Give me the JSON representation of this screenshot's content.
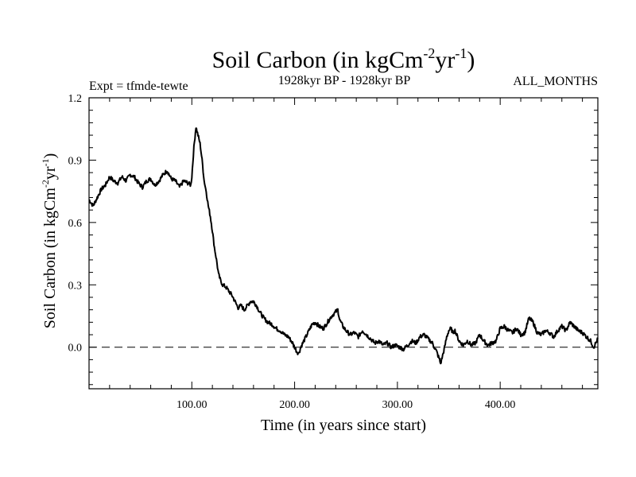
{
  "chart_data": {
    "type": "line",
    "title": {
      "base": "Soil Carbon (in kgCm",
      "sup1": "-2",
      "mid": "yr",
      "sup2": "-1",
      "end": ")"
    },
    "subtitle_left": "Expt = tfmde-tewte",
    "subtitle_center": "1928kyr BP - 1928kyr BP",
    "subtitle_right": "ALL_MONTHS",
    "xlabel": "Time (in years since start)",
    "ylabel": {
      "base": "Soil Carbon (in kgCm",
      "sup1": "-2",
      "mid": "yr",
      "sup2": "-1",
      "end": ")"
    },
    "xlim": [
      0,
      495
    ],
    "ylim": [
      -0.2,
      1.2
    ],
    "xticks": [
      100,
      200,
      300,
      400
    ],
    "xtick_labels": [
      "100.00",
      "200.00",
      "300.00",
      "400.00"
    ],
    "yticks": [
      0.0,
      0.3,
      0.6,
      0.9,
      1.2
    ],
    "ytick_labels": [
      "0.0",
      "0.3",
      "0.6",
      "0.9",
      "1.2"
    ],
    "reference_line": 0.0,
    "grid": false,
    "series": [
      {
        "name": "Soil Carbon",
        "x": [
          0,
          4,
          8,
          12,
          16,
          20,
          24,
          28,
          32,
          36,
          40,
          44,
          48,
          52,
          56,
          60,
          64,
          68,
          72,
          76,
          80,
          84,
          88,
          92,
          96,
          99,
          100,
          102,
          104,
          106,
          108,
          110,
          112,
          114,
          116,
          118,
          120,
          122,
          124,
          126,
          128,
          130,
          133,
          136,
          139,
          142,
          145,
          148,
          151,
          154,
          157,
          160,
          163,
          166,
          170,
          174,
          178,
          182,
          186,
          190,
          194,
          198,
          200,
          202,
          204,
          206,
          208,
          211,
          214,
          217,
          220,
          224,
          228,
          232,
          236,
          240,
          242,
          244,
          247,
          250,
          254,
          258,
          262,
          266,
          270,
          274,
          278,
          282,
          286,
          290,
          294,
          298,
          302,
          306,
          310,
          314,
          318,
          322,
          326,
          330,
          334,
          338,
          341,
          342,
          344,
          346,
          348,
          350,
          352,
          354,
          356,
          360,
          364,
          368,
          372,
          376,
          380,
          384,
          388,
          392,
          396,
          400,
          404,
          408,
          412,
          416,
          420,
          424,
          428,
          432,
          436,
          440,
          444,
          448,
          452,
          456,
          460,
          464,
          468,
          472,
          476,
          480,
          484,
          488,
          491,
          493,
          495
        ],
        "values": [
          0.71,
          0.68,
          0.72,
          0.76,
          0.78,
          0.82,
          0.8,
          0.79,
          0.82,
          0.8,
          0.83,
          0.82,
          0.79,
          0.77,
          0.8,
          0.81,
          0.78,
          0.8,
          0.83,
          0.85,
          0.81,
          0.8,
          0.77,
          0.8,
          0.79,
          0.78,
          0.82,
          0.96,
          1.06,
          1.02,
          0.98,
          0.9,
          0.8,
          0.75,
          0.68,
          0.63,
          0.56,
          0.48,
          0.42,
          0.35,
          0.32,
          0.3,
          0.29,
          0.27,
          0.25,
          0.22,
          0.19,
          0.2,
          0.18,
          0.2,
          0.22,
          0.22,
          0.2,
          0.17,
          0.14,
          0.12,
          0.11,
          0.09,
          0.08,
          0.06,
          0.05,
          0.02,
          0.0,
          -0.02,
          -0.03,
          0.0,
          0.02,
          0.05,
          0.08,
          0.11,
          0.12,
          0.1,
          0.09,
          0.12,
          0.15,
          0.17,
          0.18,
          0.13,
          0.1,
          0.08,
          0.06,
          0.07,
          0.05,
          0.08,
          0.06,
          0.04,
          0.02,
          0.03,
          0.01,
          0.02,
          0.0,
          0.01,
          0.0,
          -0.01,
          0.01,
          0.03,
          0.02,
          0.05,
          0.06,
          0.04,
          0.02,
          -0.02,
          -0.06,
          -0.08,
          -0.04,
          0.0,
          0.05,
          0.08,
          0.09,
          0.07,
          0.08,
          0.03,
          0.01,
          0.03,
          0.01,
          0.02,
          0.06,
          0.03,
          0.01,
          0.02,
          0.03,
          0.09,
          0.1,
          0.08,
          0.07,
          0.09,
          0.06,
          0.07,
          0.14,
          0.12,
          0.07,
          0.06,
          0.08,
          0.07,
          0.05,
          0.08,
          0.1,
          0.08,
          0.12,
          0.1,
          0.08,
          0.07,
          0.05,
          0.03,
          0.0,
          0.02,
          0.04
        ]
      }
    ]
  }
}
